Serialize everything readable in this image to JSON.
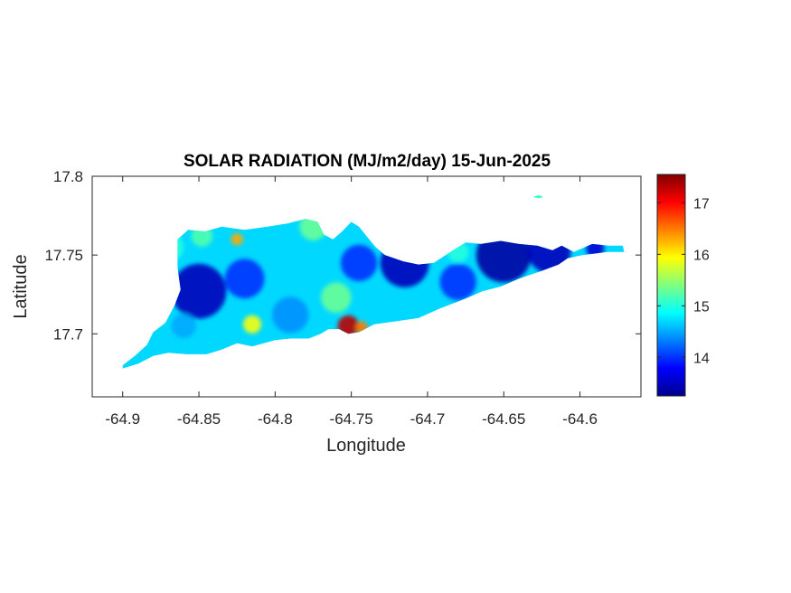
{
  "chart_data": {
    "type": "heatmap",
    "title": "SOLAR RADIATION (MJ/m2/day) 15-Jun-2025",
    "xlabel": "Longitude",
    "ylabel": "Latitude",
    "xlim": [
      -64.92,
      -64.56
    ],
    "ylim": [
      17.66,
      17.8
    ],
    "xticks": [
      -64.9,
      -64.85,
      -64.8,
      -64.75,
      -64.7,
      -64.65,
      -64.6
    ],
    "xtick_labels": [
      "-64.9",
      "-64.85",
      "-64.8",
      "-64.75",
      "-64.7",
      "-64.65",
      "-64.6"
    ],
    "yticks": [
      17.7,
      17.75,
      17.8
    ],
    "ytick_labels": [
      "17.7",
      "17.75",
      "17.8"
    ],
    "colorbar": {
      "colormap": "jet",
      "clim": [
        13.25,
        17.55
      ],
      "ticks": [
        14,
        15,
        16,
        17
      ],
      "tick_labels": [
        "14",
        "15",
        "16",
        "17"
      ]
    },
    "island_outline": [
      [
        -64.9,
        17.68
      ],
      [
        -64.892,
        17.686
      ],
      [
        -64.884,
        17.693
      ],
      [
        -64.88,
        17.701
      ],
      [
        -64.872,
        17.707
      ],
      [
        -64.866,
        17.718
      ],
      [
        -64.862,
        17.728
      ],
      [
        -64.864,
        17.742
      ],
      [
        -64.864,
        17.76
      ],
      [
        -64.857,
        17.766
      ],
      [
        -64.846,
        17.765
      ],
      [
        -64.835,
        17.768
      ],
      [
        -64.82,
        17.766
      ],
      [
        -64.805,
        17.768
      ],
      [
        -64.792,
        17.77
      ],
      [
        -64.78,
        17.773
      ],
      [
        -64.772,
        17.771
      ],
      [
        -64.768,
        17.763
      ],
      [
        -64.762,
        17.76
      ],
      [
        -64.756,
        17.765
      ],
      [
        -64.75,
        17.771
      ],
      [
        -64.745,
        17.768
      ],
      [
        -64.74,
        17.762
      ],
      [
        -64.734,
        17.755
      ],
      [
        -64.728,
        17.75
      ],
      [
        -64.716,
        17.746
      ],
      [
        -64.706,
        17.744
      ],
      [
        -64.696,
        17.745
      ],
      [
        -64.685,
        17.752
      ],
      [
        -64.675,
        17.758
      ],
      [
        -64.665,
        17.757
      ],
      [
        -64.652,
        17.759
      ],
      [
        -64.64,
        17.757
      ],
      [
        -64.628,
        17.756
      ],
      [
        -64.618,
        17.753
      ],
      [
        -64.612,
        17.756
      ],
      [
        -64.604,
        17.752
      ],
      [
        -64.592,
        17.757
      ],
      [
        -64.581,
        17.756
      ],
      [
        -64.572,
        17.756
      ],
      [
        -64.571,
        17.752
      ],
      [
        -64.582,
        17.752
      ],
      [
        -64.598,
        17.75
      ],
      [
        -64.608,
        17.748
      ],
      [
        -64.614,
        17.744
      ],
      [
        -64.625,
        17.74
      ],
      [
        -64.64,
        17.735
      ],
      [
        -64.652,
        17.73
      ],
      [
        -64.664,
        17.727
      ],
      [
        -64.676,
        17.722
      ],
      [
        -64.692,
        17.716
      ],
      [
        -64.706,
        17.71
      ],
      [
        -64.72,
        17.708
      ],
      [
        -64.735,
        17.706
      ],
      [
        -64.745,
        17.701
      ],
      [
        -64.752,
        17.7
      ],
      [
        -64.758,
        17.703
      ],
      [
        -64.765,
        17.703
      ],
      [
        -64.77,
        17.7
      ],
      [
        -64.778,
        17.697
      ],
      [
        -64.79,
        17.697
      ],
      [
        -64.8,
        17.696
      ],
      [
        -64.815,
        17.692
      ],
      [
        -64.825,
        17.694
      ],
      [
        -64.835,
        17.69
      ],
      [
        -64.845,
        17.687
      ],
      [
        -64.858,
        17.687
      ],
      [
        -64.87,
        17.688
      ],
      [
        -64.88,
        17.686
      ],
      [
        -64.89,
        17.681
      ],
      [
        -64.9,
        17.678
      ]
    ],
    "islet_outline": [
      [
        -64.631,
        17.787
      ],
      [
        -64.627,
        17.788
      ],
      [
        -64.624,
        17.787
      ],
      [
        -64.627,
        17.786
      ]
    ],
    "islet_value": 15.1,
    "anomalies": [
      {
        "lon": -64.85,
        "lat": 17.727,
        "r": 0.018,
        "value": 13.5
      },
      {
        "lon": -64.82,
        "lat": 17.735,
        "r": 0.013,
        "value": 14.0
      },
      {
        "lon": -64.79,
        "lat": 17.712,
        "r": 0.012,
        "value": 14.4
      },
      {
        "lon": -64.745,
        "lat": 17.745,
        "r": 0.012,
        "value": 14.0
      },
      {
        "lon": -64.715,
        "lat": 17.745,
        "r": 0.016,
        "value": 13.5
      },
      {
        "lon": -64.68,
        "lat": 17.733,
        "r": 0.012,
        "value": 14.0
      },
      {
        "lon": -64.65,
        "lat": 17.75,
        "r": 0.018,
        "value": 13.4
      },
      {
        "lon": -64.62,
        "lat": 17.752,
        "r": 0.014,
        "value": 13.5
      },
      {
        "lon": -64.59,
        "lat": 17.754,
        "r": 0.006,
        "value": 13.6
      },
      {
        "lon": -64.87,
        "lat": 17.755,
        "r": 0.01,
        "value": 15.0
      },
      {
        "lon": -64.848,
        "lat": 17.762,
        "r": 0.007,
        "value": 15.2
      },
      {
        "lon": -64.825,
        "lat": 17.76,
        "r": 0.004,
        "value": 16.3
      },
      {
        "lon": -64.815,
        "lat": 17.706,
        "r": 0.006,
        "value": 15.9
      },
      {
        "lon": -64.775,
        "lat": 17.768,
        "r": 0.009,
        "value": 15.3
      },
      {
        "lon": -64.76,
        "lat": 17.723,
        "r": 0.01,
        "value": 15.3
      },
      {
        "lon": -64.752,
        "lat": 17.705,
        "r": 0.007,
        "value": 17.3
      },
      {
        "lon": -64.743,
        "lat": 17.704,
        "r": 0.004,
        "value": 16.5
      },
      {
        "lon": -64.68,
        "lat": 17.752,
        "r": 0.007,
        "value": 15.0
      },
      {
        "lon": -64.89,
        "lat": 17.69,
        "r": 0.01,
        "value": 14.7
      },
      {
        "lon": -64.86,
        "lat": 17.705,
        "r": 0.008,
        "value": 14.5
      }
    ],
    "base_value": 14.7
  }
}
